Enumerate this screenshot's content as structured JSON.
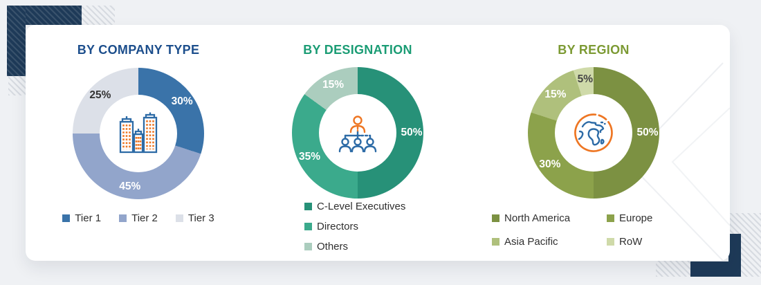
{
  "page": {
    "background_color": "#eff1f4",
    "card_color": "#ffffff"
  },
  "decor": {
    "navy_accent_color": "#1e3a58",
    "hatch_color": "#d7dbe1",
    "watermark_line_color": "#edeff2"
  },
  "chart_data": [
    {
      "type": "donut",
      "title": "BY COMPANY TYPE",
      "title_color": "#1c4e8c",
      "categories": [
        "Tier 1",
        "Tier 2",
        "Tier 3"
      ],
      "values": [
        30,
        45,
        25
      ],
      "unit": "%",
      "colors": [
        "#3a73a9",
        "#92a5cb",
        "#dce0e8"
      ],
      "label_colors": [
        "#ffffff",
        "#ffffff",
        "#333333"
      ],
      "start_angle_deg": 0,
      "direction": "clockwise",
      "center_icon": "buildings-icon",
      "legend_position": "bottom-row"
    },
    {
      "type": "donut",
      "title": "BY DESIGNATION",
      "title_color": "#1a9c74",
      "categories": [
        "C-Level Executives",
        "Directors",
        "Others"
      ],
      "values": [
        50,
        35,
        15
      ],
      "unit": "%",
      "colors": [
        "#279178",
        "#3baa8c",
        "#abcdbe"
      ],
      "label_colors": [
        "#ffffff",
        "#ffffff",
        "#ffffff"
      ],
      "start_angle_deg": 0,
      "direction": "clockwise",
      "center_icon": "org-chart-icon",
      "legend_position": "bottom-column"
    },
    {
      "type": "donut",
      "title": "BY REGION",
      "title_color": "#7c9a33",
      "categories": [
        "North America",
        "Europe",
        "Asia Pacific",
        "RoW"
      ],
      "values": [
        50,
        30,
        15,
        5
      ],
      "unit": "%",
      "colors": [
        "#7c9142",
        "#8ca24b",
        "#afc07c",
        "#cfdaa9"
      ],
      "label_colors": [
        "#ffffff",
        "#ffffff",
        "#ffffff",
        "#454545"
      ],
      "start_angle_deg": 0,
      "direction": "clockwise",
      "center_icon": "globe-icon",
      "legend_position": "bottom-grid-2col"
    }
  ]
}
